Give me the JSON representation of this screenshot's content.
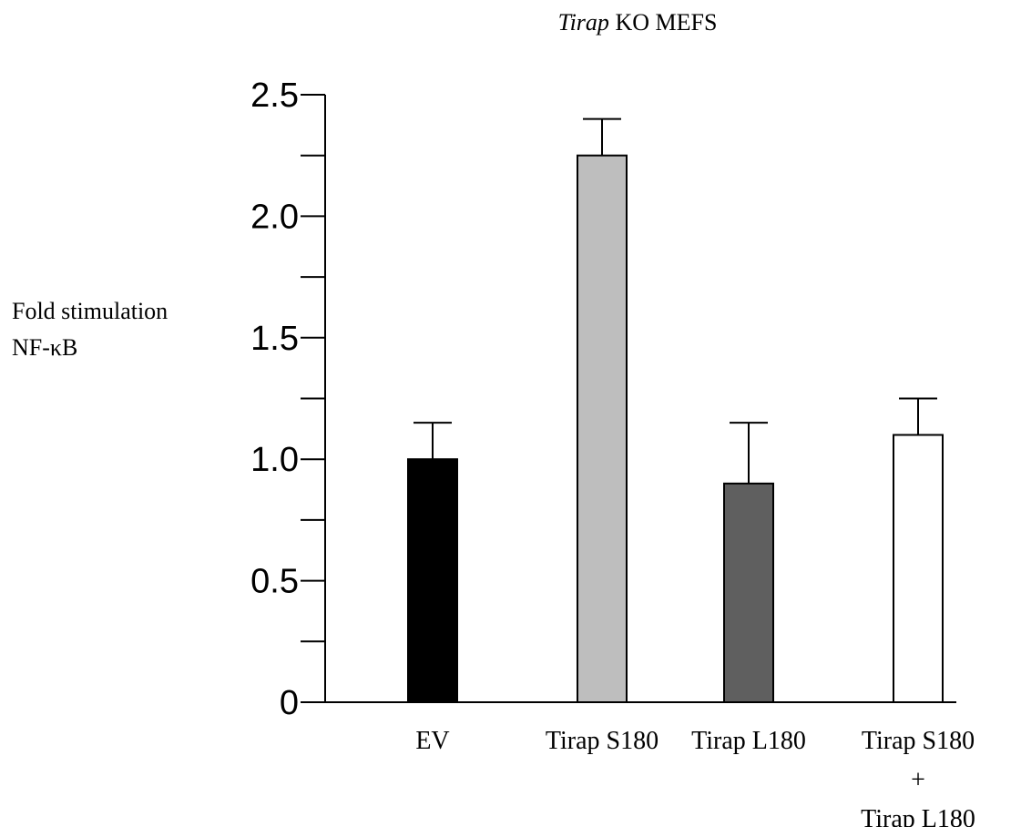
{
  "chart_data": {
    "type": "bar",
    "title": {
      "italic_part": "Tirap",
      "rest": " KO MEFS"
    },
    "ylabel": {
      "line1": "Fold stimulation",
      "line2": "NF-κB"
    },
    "xlabel": "",
    "ylim": [
      0,
      2.5
    ],
    "yticks": [
      {
        "value": 0,
        "label": "0"
      },
      {
        "value": 0.5,
        "label": "0.5"
      },
      {
        "value": 1.0,
        "label": "1.0"
      },
      {
        "value": 1.5,
        "label": "1.5"
      },
      {
        "value": 2.0,
        "label": "2.0"
      },
      {
        "value": 2.5,
        "label": "2.5"
      }
    ],
    "yminor_ticks": [
      0.25,
      0.75,
      1.25,
      1.75,
      2.25
    ],
    "grid": false,
    "legend": "none",
    "categories": [
      {
        "label_lines": [
          "EV"
        ],
        "value": 1.0,
        "error": 0.15,
        "color": "#000000"
      },
      {
        "label_lines": [
          "Tirap S180"
        ],
        "value": 2.25,
        "error": 0.15,
        "color": "#bebebe"
      },
      {
        "label_lines": [
          "Tirap L180"
        ],
        "value": 0.9,
        "error": 0.25,
        "color": "#5f5f5f"
      },
      {
        "label_lines": [
          "Tirap S180",
          "+",
          "Tirap L180"
        ],
        "value": 1.1,
        "error": 0.15,
        "color": "#ffffff"
      }
    ]
  }
}
